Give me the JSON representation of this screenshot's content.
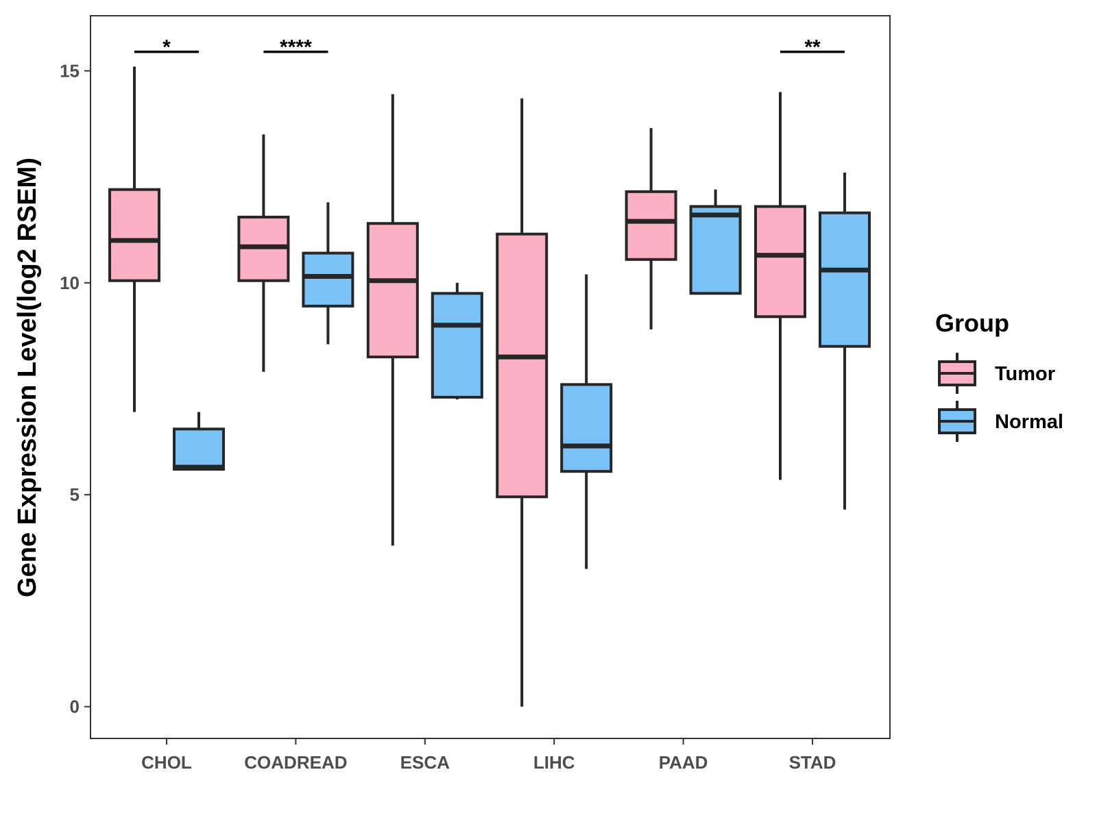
{
  "chart_data": {
    "type": "boxplot",
    "title": "",
    "xlabel": "",
    "ylabel": "Gene Expression Level(log2 RSEM)",
    "ylim": [
      -0.75,
      16.3
    ],
    "y_ticks": [
      0,
      5,
      10,
      15
    ],
    "grid": false,
    "categories": [
      "CHOL",
      "COADREAD",
      "ESCA",
      "LIHC",
      "PAAD",
      "STAD"
    ],
    "groups": [
      "Tumor",
      "Normal"
    ],
    "colors": {
      "Tumor": "#FBB1C3",
      "Normal": "#79C2F8",
      "outline": "#262626"
    },
    "legend": {
      "title": "Group",
      "position": "right"
    },
    "series": [
      {
        "name": "Tumor",
        "boxes": [
          {
            "category": "CHOL",
            "min": 6.95,
            "q1": 10.05,
            "median": 11.0,
            "q3": 12.2,
            "max": 15.1
          },
          {
            "category": "COADREAD",
            "min": 7.9,
            "q1": 10.05,
            "median": 10.85,
            "q3": 11.55,
            "max": 13.5
          },
          {
            "category": "ESCA",
            "min": 3.8,
            "q1": 8.25,
            "median": 10.05,
            "q3": 11.4,
            "max": 14.45
          },
          {
            "category": "LIHC",
            "min": 0.0,
            "q1": 4.95,
            "median": 8.25,
            "q3": 11.15,
            "max": 14.35
          },
          {
            "category": "PAAD",
            "min": 8.9,
            "q1": 10.55,
            "median": 11.45,
            "q3": 12.15,
            "max": 13.65
          },
          {
            "category": "STAD",
            "min": 5.35,
            "q1": 9.2,
            "median": 10.65,
            "q3": 11.8,
            "max": 14.5
          }
        ]
      },
      {
        "name": "Normal",
        "boxes": [
          {
            "category": "CHOL",
            "min": 5.6,
            "q1": 5.6,
            "median": 5.65,
            "q3": 6.55,
            "max": 6.95
          },
          {
            "category": "COADREAD",
            "min": 8.55,
            "q1": 9.45,
            "median": 10.15,
            "q3": 10.7,
            "max": 11.9
          },
          {
            "category": "ESCA",
            "min": 7.25,
            "q1": 7.3,
            "median": 9.0,
            "q3": 9.75,
            "max": 10.0
          },
          {
            "category": "LIHC",
            "min": 3.25,
            "q1": 5.55,
            "median": 6.15,
            "q3": 7.6,
            "max": 10.2
          },
          {
            "category": "PAAD",
            "min": 9.75,
            "q1": 9.75,
            "median": 11.6,
            "q3": 11.8,
            "max": 12.2
          },
          {
            "category": "STAD",
            "min": 4.65,
            "q1": 8.5,
            "median": 10.3,
            "q3": 11.65,
            "max": 12.6
          }
        ]
      }
    ],
    "annotations": [
      {
        "category": "CHOL",
        "label": "*",
        "y": 15.45
      },
      {
        "category": "COADREAD",
        "label": "****",
        "y": 15.45
      },
      {
        "category": "STAD",
        "label": "**",
        "y": 15.45
      }
    ]
  }
}
